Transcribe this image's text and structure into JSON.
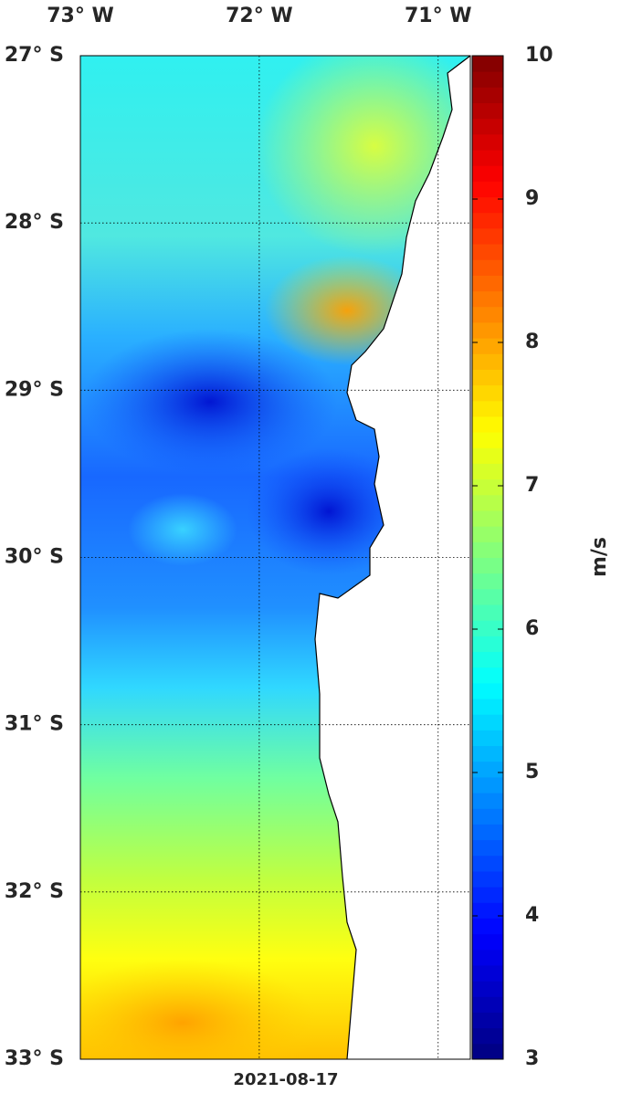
{
  "map": {
    "xlim": [
      -73,
      -70.82
    ],
    "ylim": [
      -33,
      -27
    ],
    "xticks": [
      {
        "value": -73,
        "label": "73° W"
      },
      {
        "value": -72,
        "label": "72° W"
      },
      {
        "value": -71,
        "label": "71° W"
      }
    ],
    "yticks": [
      {
        "value": -27,
        "label": "27° S"
      },
      {
        "value": -28,
        "label": "28° S"
      },
      {
        "value": -29,
        "label": "29° S"
      },
      {
        "value": -30,
        "label": "30° S"
      },
      {
        "value": -31,
        "label": "31° S"
      },
      {
        "value": -32,
        "label": "32° S"
      },
      {
        "value": -33,
        "label": "33° S"
      }
    ],
    "grid": true,
    "date": "2021-08-17",
    "colorbar": {
      "label": "m/s",
      "lim": [
        3,
        10
      ],
      "ticks": [
        3,
        4,
        5,
        6,
        7,
        8,
        9,
        10
      ],
      "colormap": "jet"
    }
  }
}
